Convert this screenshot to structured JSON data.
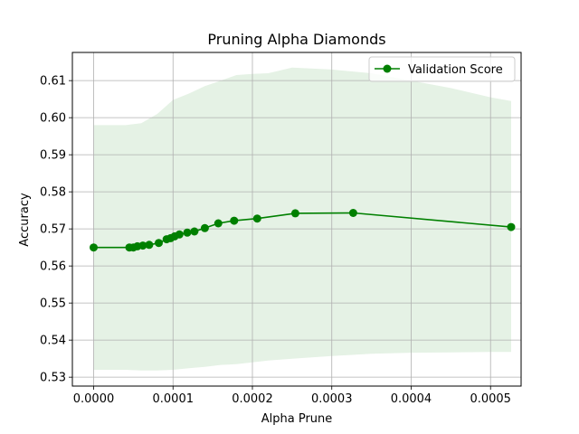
{
  "chart_data": {
    "type": "line",
    "title": "Pruning Alpha Diamonds",
    "xlabel": "Alpha Prune",
    "ylabel": "Accuracy",
    "xlim": [
      -2.68e-05,
      0.0005385
    ],
    "ylim": [
      0.5276,
      0.6176
    ],
    "xticks": [
      0.0,
      0.0001,
      0.0002,
      0.0003,
      0.0004,
      0.0005
    ],
    "xtick_labels": [
      "0.0000",
      "0.0001",
      "0.0002",
      "0.0003",
      "0.0004",
      "0.0005"
    ],
    "yticks": [
      0.53,
      0.54,
      0.55,
      0.56,
      0.57,
      0.58,
      0.59,
      0.6,
      0.61
    ],
    "ytick_labels": [
      "0.53",
      "0.54",
      "0.55",
      "0.56",
      "0.57",
      "0.58",
      "0.59",
      "0.60",
      "0.61"
    ],
    "grid": true,
    "legend_position": "top-right",
    "colors": {
      "line": "#008000",
      "band": "#e5f2e5",
      "grid": "#b0b0b0"
    },
    "series": [
      {
        "name": "Validation Score",
        "x": [
          0.0,
          4.5e-05,
          5e-05,
          5.5e-05,
          6.2e-05,
          7e-05,
          8.2e-05,
          9.2e-05,
          9.7e-05,
          0.000102,
          0.000108,
          0.000118,
          0.000127,
          0.00014,
          0.000157,
          0.000177,
          0.000206,
          0.000254,
          0.000327,
          0.000526
        ],
        "y": [
          0.565,
          0.565,
          0.565,
          0.5653,
          0.5655,
          0.5657,
          0.5662,
          0.5672,
          0.5675,
          0.568,
          0.5685,
          0.569,
          0.5693,
          0.5702,
          0.5715,
          0.5722,
          0.5728,
          0.5742,
          0.5743,
          0.5705
        ]
      }
    ],
    "band": {
      "x": [
        0.0,
        2e-05,
        4e-05,
        6e-05,
        8e-05,
        0.0001,
        0.00012,
        0.00014,
        0.00016,
        0.00018,
        0.0002,
        0.00022,
        0.00025,
        0.0003,
        0.00035,
        0.0004,
        0.00045,
        0.0005,
        0.000526
      ],
      "upper": [
        0.598,
        0.598,
        0.598,
        0.5985,
        0.601,
        0.6048,
        0.6065,
        0.6085,
        0.61,
        0.6115,
        0.6118,
        0.612,
        0.6135,
        0.613,
        0.612,
        0.61,
        0.608,
        0.6055,
        0.6045
      ],
      "lower": [
        0.532,
        0.532,
        0.532,
        0.5318,
        0.5318,
        0.532,
        0.5324,
        0.5328,
        0.5333,
        0.5335,
        0.534,
        0.5345,
        0.535,
        0.5357,
        0.5363,
        0.5366,
        0.5367,
        0.5368,
        0.5368
      ]
    }
  }
}
